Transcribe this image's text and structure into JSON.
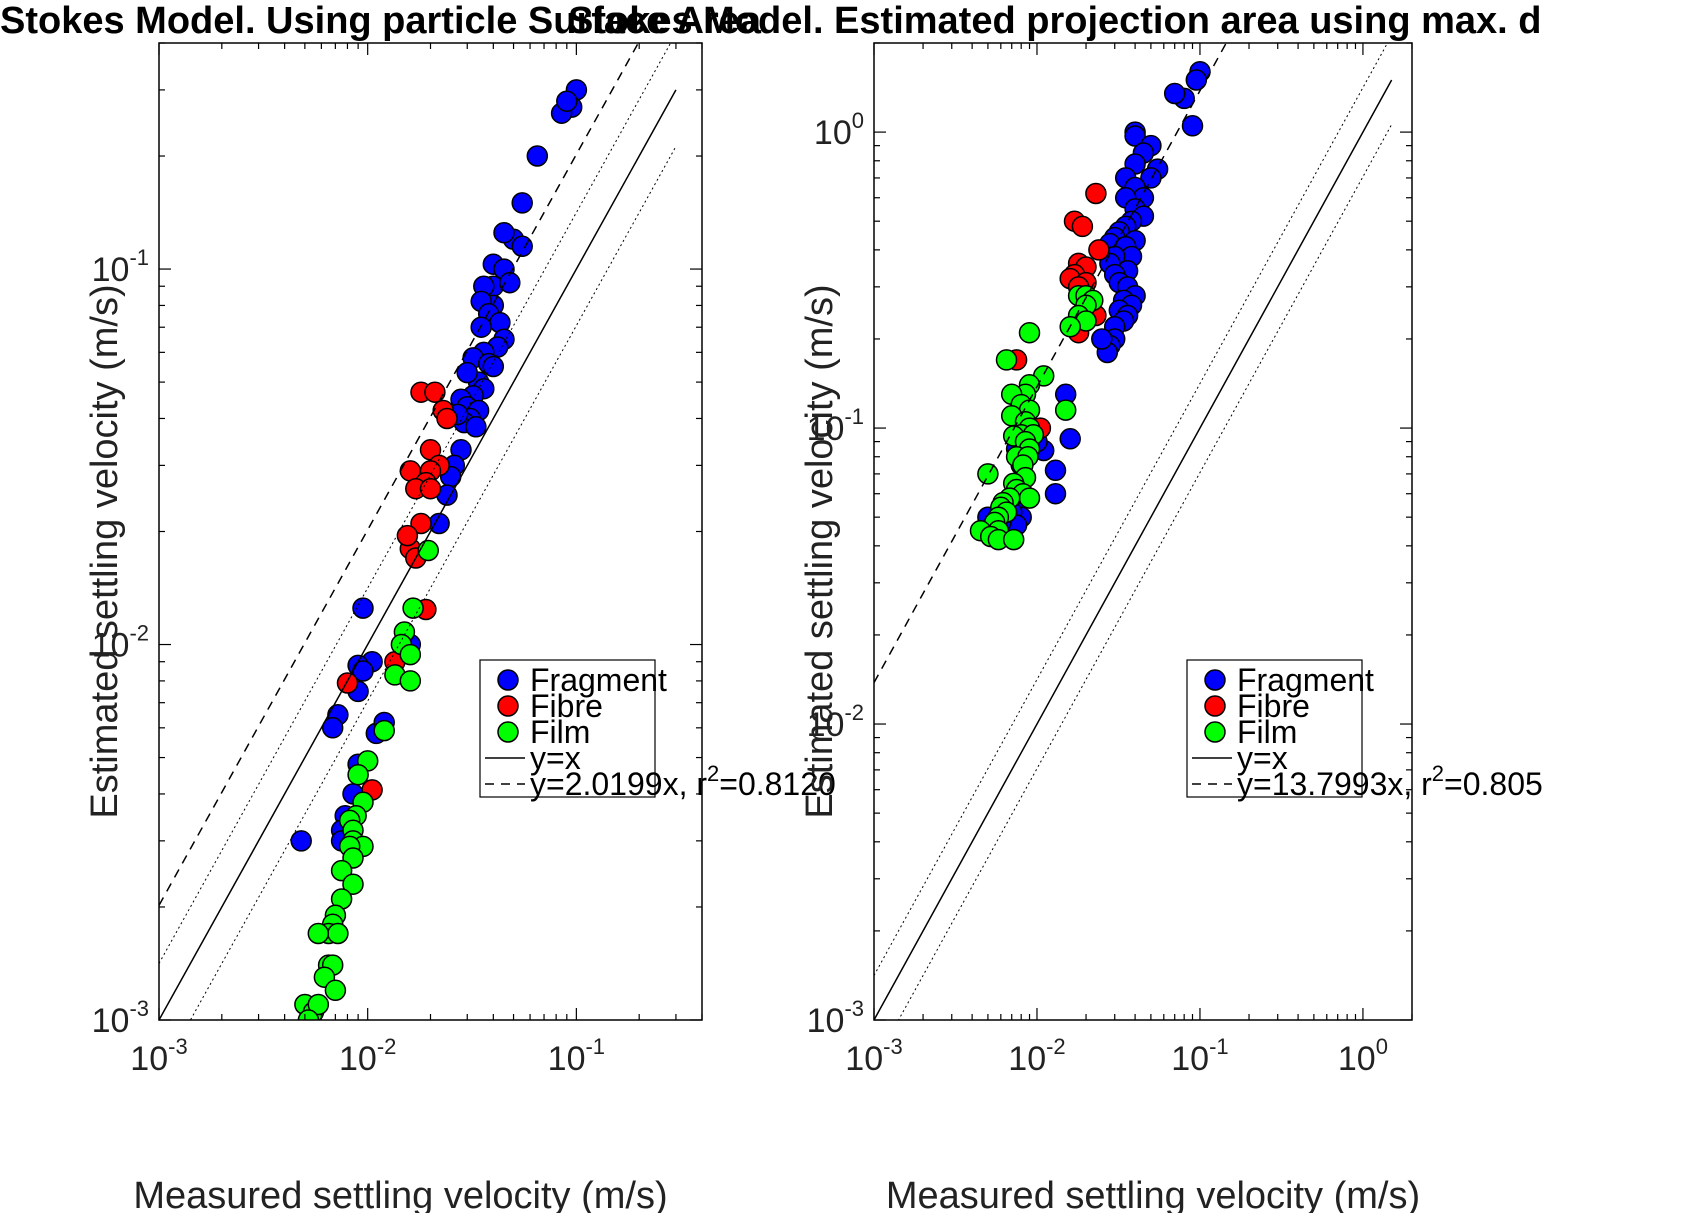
{
  "figure": {
    "background": "#ffffff"
  },
  "colors": {
    "fragment": "#0000ff",
    "fibre": "#ff0000",
    "film": "#00ff00",
    "marker_edge": "#000000",
    "axes": "#000000"
  },
  "chart_data": [
    {
      "type": "scatter",
      "title": "Stokes Model. Using particle Surface Area",
      "xlabel": "Measured settling velocity (m/s)",
      "ylabel": "Estimated settling velocity (m/s)",
      "xscale": "log",
      "yscale": "log",
      "xlim": [
        0.001,
        0.4
      ],
      "ylim": [
        0.001,
        0.4
      ],
      "xticks": [
        {
          "base": "10",
          "exp": "-3",
          "value": 0.001
        },
        {
          "base": "10",
          "exp": "-2",
          "value": 0.01
        },
        {
          "base": "10",
          "exp": "-1",
          "value": 0.1
        }
      ],
      "yticks": [
        {
          "base": "10",
          "exp": "-3",
          "value": 0.001
        },
        {
          "base": "10",
          "exp": "-2",
          "value": 0.01
        },
        {
          "base": "10",
          "exp": "-1",
          "value": 0.1
        }
      ],
      "grid": false,
      "legend": "right-middle",
      "reference_lines": [
        {
          "label": "y=x",
          "slope": 1,
          "style": "solid"
        },
        {
          "slope": 1.414,
          "style": "dotted"
        },
        {
          "slope": 0.707,
          "style": "dotted"
        },
        {
          "label_pre": "y=2.0199x, r",
          "label_sup": "2",
          "label_post": "=0.8120",
          "slope": 2.0199,
          "style": "dashed"
        }
      ],
      "series": [
        {
          "name": "Fragment",
          "color_key": "fragment",
          "points": [
            [
              0.1,
              0.3
            ],
            [
              0.095,
              0.27
            ],
            [
              0.085,
              0.26
            ],
            [
              0.09,
              0.28
            ],
            [
              0.065,
              0.2
            ],
            [
              0.055,
              0.15
            ],
            [
              0.05,
              0.12
            ],
            [
              0.055,
              0.115
            ],
            [
              0.045,
              0.125
            ],
            [
              0.04,
              0.103
            ],
            [
              0.045,
              0.1
            ],
            [
              0.04,
              0.09
            ],
            [
              0.048,
              0.092
            ],
            [
              0.036,
              0.09
            ],
            [
              0.04,
              0.08
            ],
            [
              0.035,
              0.082
            ],
            [
              0.038,
              0.076
            ],
            [
              0.043,
              0.072
            ],
            [
              0.035,
              0.07
            ],
            [
              0.045,
              0.065
            ],
            [
              0.042,
              0.062
            ],
            [
              0.036,
              0.06
            ],
            [
              0.032,
              0.058
            ],
            [
              0.038,
              0.056
            ],
            [
              0.04,
              0.055
            ],
            [
              0.034,
              0.05
            ],
            [
              0.03,
              0.053
            ],
            [
              0.036,
              0.048
            ],
            [
              0.032,
              0.046
            ],
            [
              0.028,
              0.045
            ],
            [
              0.03,
              0.043
            ],
            [
              0.034,
              0.042
            ],
            [
              0.031,
              0.04
            ],
            [
              0.029,
              0.039
            ],
            [
              0.033,
              0.038
            ],
            [
              0.027,
              0.041
            ],
            [
              0.028,
              0.033
            ],
            [
              0.026,
              0.03
            ],
            [
              0.025,
              0.028
            ],
            [
              0.024,
              0.025
            ],
            [
              0.022,
              0.021
            ],
            [
              0.016,
              0.01
            ],
            [
              0.0095,
              0.0125
            ],
            [
              0.0105,
              0.009
            ],
            [
              0.009,
              0.0088
            ],
            [
              0.0095,
              0.0085
            ],
            [
              0.009,
              0.0075
            ],
            [
              0.0072,
              0.0065
            ],
            [
              0.0068,
              0.006
            ],
            [
              0.009,
              0.0048
            ],
            [
              0.011,
              0.0058
            ],
            [
              0.012,
              0.0062
            ],
            [
              0.0085,
              0.004
            ],
            [
              0.0078,
              0.0035
            ],
            [
              0.0075,
              0.0032
            ],
            [
              0.0075,
              0.003
            ],
            [
              0.0048,
              0.003
            ]
          ]
        },
        {
          "name": "Fibre",
          "color_key": "fibre",
          "points": [
            [
              0.018,
              0.047
            ],
            [
              0.021,
              0.047
            ],
            [
              0.023,
              0.042
            ],
            [
              0.024,
              0.04
            ],
            [
              0.02,
              0.033
            ],
            [
              0.022,
              0.03
            ],
            [
              0.02,
              0.029
            ],
            [
              0.016,
              0.029
            ],
            [
              0.019,
              0.027
            ],
            [
              0.017,
              0.026
            ],
            [
              0.02,
              0.026
            ],
            [
              0.018,
              0.021
            ],
            [
              0.016,
              0.018
            ],
            [
              0.017,
              0.017
            ],
            [
              0.0155,
              0.0195
            ],
            [
              0.019,
              0.0124
            ],
            [
              0.008,
              0.0079
            ],
            [
              0.0135,
              0.009
            ],
            [
              0.0105,
              0.0041
            ]
          ]
        },
        {
          "name": "Film",
          "color_key": "film",
          "points": [
            [
              0.0195,
              0.0178
            ],
            [
              0.0165,
              0.0125
            ],
            [
              0.015,
              0.0108
            ],
            [
              0.0145,
              0.01
            ],
            [
              0.016,
              0.0094
            ],
            [
              0.0135,
              0.0083
            ],
            [
              0.016,
              0.008
            ],
            [
              0.012,
              0.0059
            ],
            [
              0.01,
              0.0049
            ],
            [
              0.009,
              0.0045
            ],
            [
              0.0095,
              0.0038
            ],
            [
              0.0088,
              0.0035
            ],
            [
              0.0082,
              0.0034
            ],
            [
              0.0085,
              0.0032
            ],
            [
              0.0085,
              0.003
            ],
            [
              0.0095,
              0.0029
            ],
            [
              0.0082,
              0.0029
            ],
            [
              0.0085,
              0.0027
            ],
            [
              0.0075,
              0.0025
            ],
            [
              0.0085,
              0.0023
            ],
            [
              0.0075,
              0.0021
            ],
            [
              0.007,
              0.0019
            ],
            [
              0.0068,
              0.0018
            ],
            [
              0.0065,
              0.0017
            ],
            [
              0.0072,
              0.0017
            ],
            [
              0.0058,
              0.0017
            ],
            [
              0.0065,
              0.0014
            ],
            [
              0.0068,
              0.0014
            ],
            [
              0.0062,
              0.0013
            ],
            [
              0.007,
              0.0012
            ],
            [
              0.005,
              0.0011
            ],
            [
              0.0055,
              0.00105
            ],
            [
              0.0058,
              0.0011
            ],
            [
              0.0052,
              0.001
            ]
          ]
        }
      ]
    },
    {
      "type": "scatter",
      "title": "Stokes Model. Estimated projection area using max. d",
      "xlabel": "Measured settling velocity (m/s)",
      "ylabel": "Estimated settling velocity (m/s)",
      "xscale": "log",
      "yscale": "log",
      "xlim": [
        0.001,
        2.0
      ],
      "ylim": [
        0.001,
        2.0
      ],
      "xticks": [
        {
          "base": "10",
          "exp": "-3",
          "value": 0.001
        },
        {
          "base": "10",
          "exp": "-2",
          "value": 0.01
        },
        {
          "base": "10",
          "exp": "-1",
          "value": 0.1
        },
        {
          "base": "10",
          "exp": "0",
          "value": 1
        }
      ],
      "yticks": [
        {
          "base": "10",
          "exp": "-3",
          "value": 0.001
        },
        {
          "base": "10",
          "exp": "-2",
          "value": 0.01
        },
        {
          "base": "10",
          "exp": "-1",
          "value": 0.1
        },
        {
          "base": "10",
          "exp": "0",
          "value": 1
        }
      ],
      "grid": false,
      "legend": "right-middle",
      "reference_lines": [
        {
          "label": "y=x",
          "slope": 1,
          "style": "solid"
        },
        {
          "slope": 1.414,
          "style": "dotted"
        },
        {
          "slope": 0.707,
          "style": "dotted"
        },
        {
          "label_pre": "y=13.7993x, r",
          "label_sup": "2",
          "label_post": "=0.805",
          "slope": 13.7993,
          "style": "dashed"
        }
      ],
      "series": [
        {
          "name": "Fragment",
          "color_key": "fragment",
          "points": [
            [
              0.1,
              1.6
            ],
            [
              0.095,
              1.5
            ],
            [
              0.08,
              1.3
            ],
            [
              0.07,
              1.35
            ],
            [
              0.09,
              1.05
            ],
            [
              0.04,
              1.0
            ],
            [
              0.04,
              0.97
            ],
            [
              0.05,
              0.9
            ],
            [
              0.045,
              0.85
            ],
            [
              0.04,
              0.78
            ],
            [
              0.055,
              0.75
            ],
            [
              0.05,
              0.7
            ],
            [
              0.035,
              0.7
            ],
            [
              0.04,
              0.65
            ],
            [
              0.045,
              0.6
            ],
            [
              0.035,
              0.6
            ],
            [
              0.04,
              0.55
            ],
            [
              0.045,
              0.52
            ],
            [
              0.038,
              0.5
            ],
            [
              0.035,
              0.48
            ],
            [
              0.032,
              0.46
            ],
            [
              0.04,
              0.43
            ],
            [
              0.03,
              0.44
            ],
            [
              0.028,
              0.42
            ],
            [
              0.035,
              0.41
            ],
            [
              0.038,
              0.38
            ],
            [
              0.03,
              0.38
            ],
            [
              0.028,
              0.36
            ],
            [
              0.036,
              0.34
            ],
            [
              0.03,
              0.33
            ],
            [
              0.032,
              0.31
            ],
            [
              0.036,
              0.3
            ],
            [
              0.04,
              0.28
            ],
            [
              0.034,
              0.27
            ],
            [
              0.038,
              0.26
            ],
            [
              0.032,
              0.25
            ],
            [
              0.036,
              0.24
            ],
            [
              0.034,
              0.23
            ],
            [
              0.03,
              0.22
            ],
            [
              0.03,
              0.2
            ],
            [
              0.028,
              0.19
            ],
            [
              0.027,
              0.18
            ],
            [
              0.025,
              0.2
            ],
            [
              0.015,
              0.13
            ],
            [
              0.016,
              0.092
            ],
            [
              0.013,
              0.072
            ],
            [
              0.013,
              0.06
            ],
            [
              0.011,
              0.084
            ],
            [
              0.01,
              0.09
            ],
            [
              0.009,
              0.1
            ],
            [
              0.0085,
              0.11
            ],
            [
              0.0075,
              0.085
            ],
            [
              0.008,
              0.075
            ],
            [
              0.008,
              0.065
            ],
            [
              0.0075,
              0.055
            ],
            [
              0.008,
              0.05
            ],
            [
              0.007,
              0.052
            ],
            [
              0.0075,
              0.047
            ],
            [
              0.005,
              0.05
            ],
            [
              0.006,
              0.048
            ]
          ]
        },
        {
          "name": "Fibre",
          "color_key": "fibre",
          "points": [
            [
              0.023,
              0.62
            ],
            [
              0.017,
              0.5
            ],
            [
              0.019,
              0.48
            ],
            [
              0.024,
              0.4
            ],
            [
              0.018,
              0.36
            ],
            [
              0.02,
              0.35
            ],
            [
              0.017,
              0.33
            ],
            [
              0.016,
              0.32
            ],
            [
              0.02,
              0.31
            ],
            [
              0.018,
              0.3
            ],
            [
              0.023,
              0.24
            ],
            [
              0.018,
              0.21
            ],
            [
              0.0075,
              0.17
            ],
            [
              0.0105,
              0.1
            ]
          ]
        },
        {
          "name": "Film",
          "color_key": "film",
          "points": [
            [
              0.018,
              0.28
            ],
            [
              0.02,
              0.28
            ],
            [
              0.022,
              0.27
            ],
            [
              0.02,
              0.26
            ],
            [
              0.018,
              0.24
            ],
            [
              0.02,
              0.23
            ],
            [
              0.016,
              0.22
            ],
            [
              0.009,
              0.21
            ],
            [
              0.0065,
              0.17
            ],
            [
              0.011,
              0.15
            ],
            [
              0.009,
              0.14
            ],
            [
              0.0085,
              0.13
            ],
            [
              0.007,
              0.13
            ],
            [
              0.008,
              0.12
            ],
            [
              0.009,
              0.115
            ],
            [
              0.015,
              0.115
            ],
            [
              0.007,
              0.11
            ],
            [
              0.0085,
              0.105
            ],
            [
              0.009,
              0.1
            ],
            [
              0.008,
              0.095
            ],
            [
              0.0095,
              0.095
            ],
            [
              0.0072,
              0.094
            ],
            [
              0.0085,
              0.09
            ],
            [
              0.009,
              0.085
            ],
            [
              0.0075,
              0.08
            ],
            [
              0.0088,
              0.08
            ],
            [
              0.0082,
              0.075
            ],
            [
              0.005,
              0.07
            ],
            [
              0.0085,
              0.068
            ],
            [
              0.0072,
              0.065
            ],
            [
              0.0075,
              0.062
            ],
            [
              0.0082,
              0.06
            ],
            [
              0.009,
              0.058
            ],
            [
              0.0068,
              0.058
            ],
            [
              0.0062,
              0.056
            ],
            [
              0.006,
              0.054
            ],
            [
              0.0065,
              0.052
            ],
            [
              0.0058,
              0.05
            ],
            [
              0.0055,
              0.048
            ],
            [
              0.0058,
              0.045
            ],
            [
              0.0045,
              0.045
            ],
            [
              0.0052,
              0.043
            ],
            [
              0.0058,
              0.042
            ],
            [
              0.0072,
              0.042
            ]
          ]
        }
      ]
    }
  ]
}
